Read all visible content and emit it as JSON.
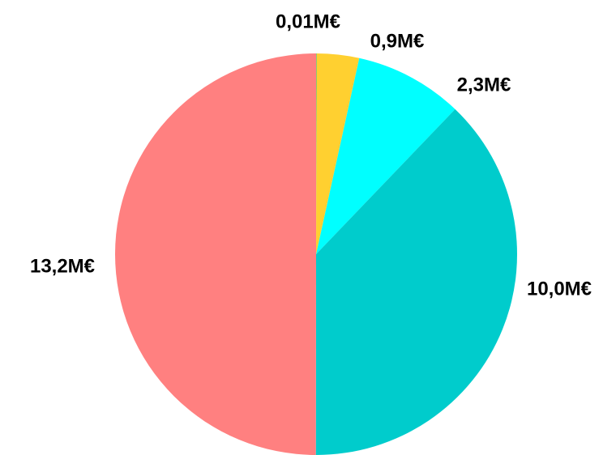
{
  "chart_data": {
    "type": "pie",
    "values": [
      0.01,
      0.9,
      2.3,
      10.0,
      13.2
    ],
    "value_labels": [
      "0,01M€",
      "0,9M€",
      "2,3M€",
      "10,0M€",
      "13,2M€"
    ],
    "colors": [
      "#20c0a0",
      "#ffd030",
      "#00ffff",
      "#00cccc",
      "#ff8080"
    ]
  }
}
